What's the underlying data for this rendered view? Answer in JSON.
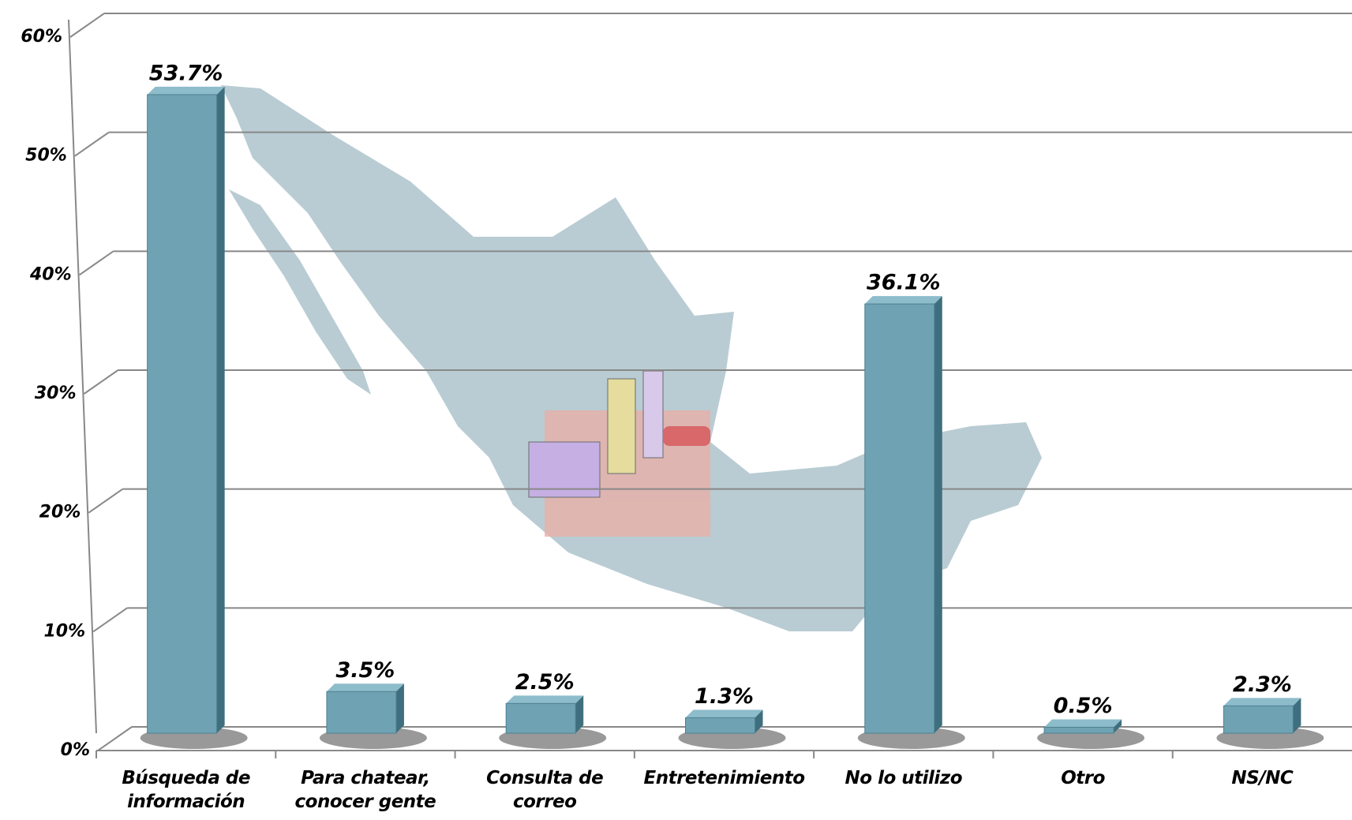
{
  "chart_data": {
    "type": "bar",
    "categories": [
      "Búsqueda de información",
      "Para chatear, conocer gente",
      "Consulta de correo",
      "Entretenimiento",
      "No lo utilizo",
      "Otro",
      "NS/NC"
    ],
    "values": [
      53.7,
      3.5,
      2.5,
      1.3,
      36.1,
      0.5,
      2.3
    ],
    "value_labels": [
      "53.7%",
      "3.5%",
      "2.5%",
      "1.3%",
      "36.1%",
      "0.5%",
      "2.3%"
    ],
    "color": "#6fa3b3",
    "ylim": [
      0,
      60
    ],
    "yticks": [
      {
        "value": 0,
        "label": "0%"
      },
      {
        "value": 10,
        "label": "10%"
      },
      {
        "value": 20,
        "label": "20%"
      },
      {
        "value": 30,
        "label": "30%"
      },
      {
        "value": 40,
        "label": "40%"
      },
      {
        "value": 50,
        "label": "50%"
      },
      {
        "value": 60,
        "label": "60%"
      }
    ],
    "grid": true
  }
}
